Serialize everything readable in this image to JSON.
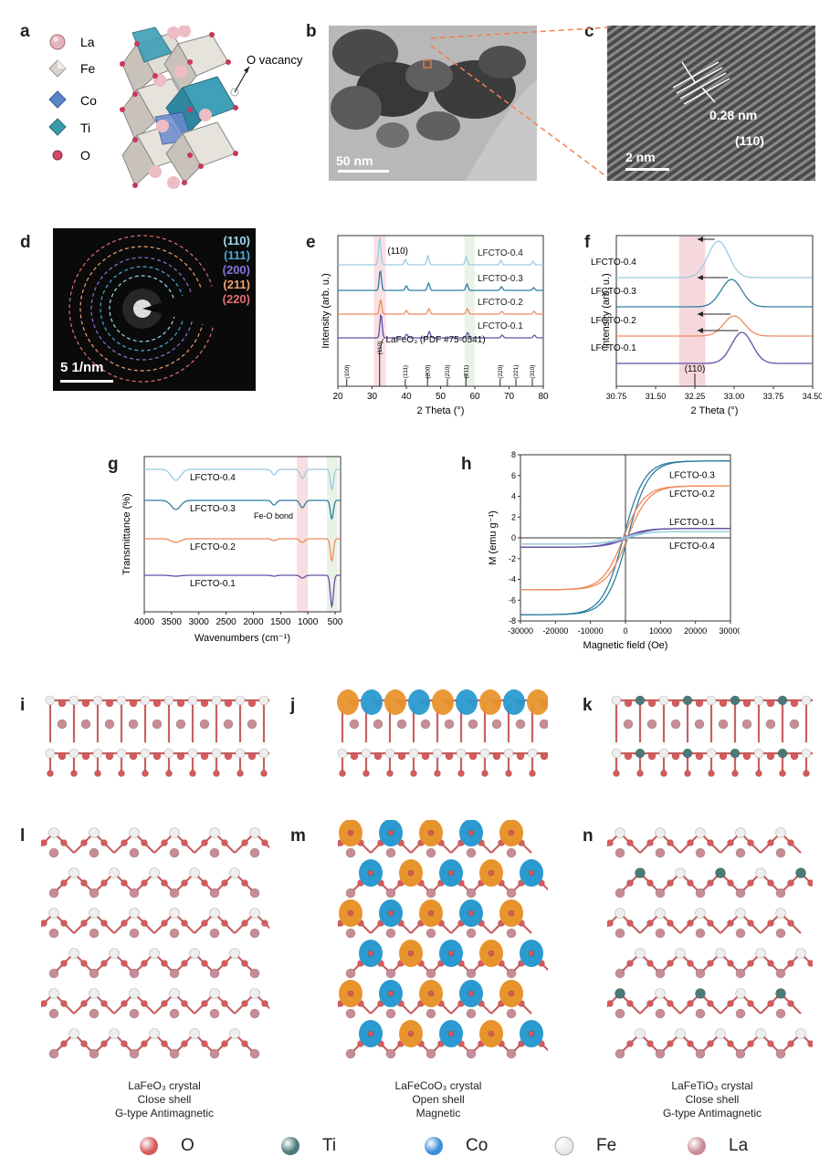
{
  "panel_labels": [
    "a",
    "b",
    "c",
    "d",
    "e",
    "f",
    "g",
    "h",
    "i",
    "j",
    "k",
    "l",
    "m",
    "n"
  ],
  "panel_a": {
    "legend": [
      {
        "label": "La",
        "icon": "la-atom-icon"
      },
      {
        "label": "Fe",
        "icon": "fe-octahedron-icon"
      },
      {
        "label": "Co",
        "icon": "co-octahedron-icon"
      },
      {
        "label": "Ti",
        "icon": "ti-octahedron-icon"
      },
      {
        "label": "O",
        "icon": "o-atom-icon"
      }
    ],
    "vacancy_label": "O vacancy"
  },
  "panel_b": {
    "scale_bar": "50 nm"
  },
  "panel_c": {
    "scale_bar": "2 nm",
    "spacing": "0.28  nm",
    "plane": "(110)"
  },
  "panel_d": {
    "scale_bar": "5 1/nm",
    "rings": [
      {
        "label": "(110)",
        "color": "#9fd8ea"
      },
      {
        "label": "(111)",
        "color": "#4aa8d8"
      },
      {
        "label": "(200)",
        "color": "#8a74d8"
      },
      {
        "label": "(211)",
        "color": "#f0a070"
      },
      {
        "label": "(220)",
        "color": "#e07070"
      }
    ]
  },
  "chart_data": [
    {
      "id": "e",
      "type": "line",
      "title": "",
      "xlabel": "2 Theta (°)",
      "ylabel": "Intensity (arb. u.)",
      "xlim": [
        20,
        80
      ],
      "xticks": [
        20,
        30,
        40,
        50,
        60,
        70,
        80
      ],
      "series": [
        {
          "name": "LFCTO-0.4",
          "color": "#9ccbe0",
          "peaks": [
            32.2,
            39.7,
            46.3,
            57.5,
            67.6,
            77.0
          ]
        },
        {
          "name": "LFCTO-0.3",
          "color": "#2d7fa0",
          "peaks": [
            32.4,
            40.0,
            46.5,
            57.7,
            67.8,
            77.2
          ]
        },
        {
          "name": "LFCTO-0.2",
          "color": "#ee8a5a",
          "peaks": [
            32.5,
            40.0,
            46.6,
            57.8,
            67.9,
            77.3
          ]
        },
        {
          "name": "LFCTO-0.1",
          "color": "#6050a8",
          "peaks": [
            32.6,
            40.1,
            46.7,
            57.9,
            68.0,
            77.4
          ]
        }
      ],
      "annotation": "(110)",
      "reference": {
        "label": "LaFeO₃ (PDF #75-0541)",
        "lines": [
          {
            "x": 22.6,
            "hkl": "(100)"
          },
          {
            "x": 32.2,
            "hkl": "(110)"
          },
          {
            "x": 39.7,
            "hkl": "(111)"
          },
          {
            "x": 46.2,
            "hkl": "(200)"
          },
          {
            "x": 52.0,
            "hkl": "(210)"
          },
          {
            "x": 57.4,
            "hkl": "(211)"
          },
          {
            "x": 67.4,
            "hkl": "(220)"
          },
          {
            "x": 72.0,
            "hkl": "(221)"
          },
          {
            "x": 76.8,
            "hkl": "(310)"
          }
        ]
      },
      "highlight_bands": [
        [
          30.5,
          34.0
        ],
        [
          57.0,
          60.0
        ]
      ]
    },
    {
      "id": "f",
      "type": "line",
      "xlabel": "2 Theta (°)",
      "ylabel": "Intensity (arb. u.)",
      "xlim": [
        30.75,
        34.5
      ],
      "xticks": [
        "30.75",
        "31.50",
        "32.25",
        "33.00",
        "33.75",
        "34.50"
      ],
      "series": [
        {
          "name": "LFCTO-0.4",
          "color": "#9ccbe0",
          "peak": 32.7
        },
        {
          "name": "LFCTO-0.3",
          "color": "#2d7fa0",
          "peak": 32.95
        },
        {
          "name": "LFCTO-0.2",
          "color": "#ee8a5a",
          "peak": 33.0
        },
        {
          "name": "LFCTO-0.1",
          "color": "#6050a8",
          "peak": 33.15
        }
      ],
      "reference_label": "(110)",
      "reference_x": 32.25,
      "highlight_band": [
        31.95,
        32.45
      ]
    },
    {
      "id": "g",
      "type": "line",
      "xlabel": "Wavenumbers (cm⁻¹)",
      "ylabel": "Transmittance (%)",
      "xlim": [
        4000,
        400
      ],
      "xticks": [
        "4000",
        "3500",
        "3000",
        "2500",
        "2000",
        "1500",
        "1000",
        "500"
      ],
      "series": [
        {
          "name": "LFCTO-0.4",
          "color": "#9ccbe0"
        },
        {
          "name": "LFCTO-0.3",
          "color": "#2d7fa0"
        },
        {
          "name": "LFCTO-0.2",
          "color": "#ee8a5a"
        },
        {
          "name": "LFCTO-0.1",
          "color": "#6050a8"
        }
      ],
      "annotation": "Fe-O bond",
      "highlight_bands": [
        [
          1200,
          1000
        ],
        [
          650,
          450
        ]
      ]
    },
    {
      "id": "h",
      "type": "line",
      "xlabel": "Magnetic field (Oe)",
      "ylabel": "M (emu g⁻¹)",
      "xlim": [
        -30000,
        30000
      ],
      "ylim": [
        -8,
        8
      ],
      "xticks": [
        "-30000",
        "-20000",
        "-10000",
        "0",
        "10000",
        "20000",
        "30000"
      ],
      "yticks": [
        "-8",
        "-6",
        "-4",
        "-2",
        "0",
        "2",
        "4",
        "6",
        "8"
      ],
      "series": [
        {
          "name": "LFCTO-0.3",
          "color": "#2d7fa0",
          "ms": 7.4
        },
        {
          "name": "LFCTO-0.2",
          "color": "#ee8a5a",
          "ms": 5.0
        },
        {
          "name": "LFCTO-0.1",
          "color": "#6050a8",
          "ms": 0.9
        },
        {
          "name": "LFCTO-0.4",
          "color": "#9ccbe0",
          "ms": 0.6
        }
      ]
    }
  ],
  "captions": [
    {
      "line1": "LaFeO₃ crystal",
      "line2": "Close shell",
      "line3": "G-type Antimagnetic"
    },
    {
      "line1": "LaFeCoO₃ crystal",
      "line2": "Open shell",
      "line3": "Magnetic"
    },
    {
      "line1": "LaFeTiO₃ crystal",
      "line2": "Close shell",
      "line3": "G-type Antimagnetic"
    }
  ],
  "bottom_legend": [
    {
      "label": "O",
      "color": "#d85a5a",
      "icon": "o-sphere-icon"
    },
    {
      "label": "Ti",
      "color": "#4a7a78",
      "icon": "ti-sphere-icon"
    },
    {
      "label": "Co",
      "color": "#3a8ed8",
      "icon": "co-sphere-icon"
    },
    {
      "label": "Fe",
      "color": "#e8e8e8",
      "icon": "fe-sphere-icon"
    },
    {
      "label": "La",
      "color": "#c88c96",
      "icon": "la-sphere-icon"
    }
  ]
}
